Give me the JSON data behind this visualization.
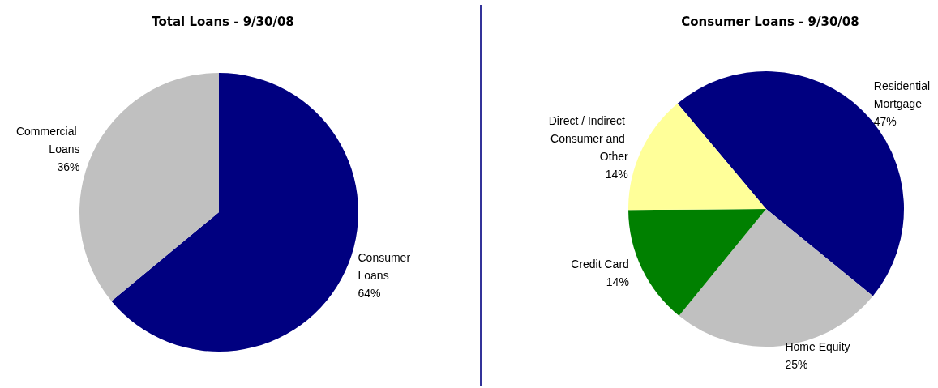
{
  "chart_data": [
    {
      "type": "pie",
      "title": "Total Loans - 9/30/08",
      "categories": [
        "Consumer Loans",
        "Commercial Loans"
      ],
      "values": [
        64,
        36
      ],
      "value_labels": [
        "64%",
        "36%"
      ],
      "colors": [
        "#000080",
        "#c0c0c0"
      ],
      "legend": false
    },
    {
      "type": "pie",
      "title": "Consumer Loans - 9/30/08",
      "categories": [
        "Residential Mortgage",
        "Home Equity",
        "Credit Card",
        "Direct / Indirect Consumer and Other"
      ],
      "values": [
        47,
        25,
        14,
        14
      ],
      "value_labels": [
        "47%",
        "25%",
        "14%",
        "14%"
      ],
      "colors": [
        "#000080",
        "#c0c0c0",
        "#008000",
        "#ffff99"
      ],
      "legend": false
    }
  ]
}
